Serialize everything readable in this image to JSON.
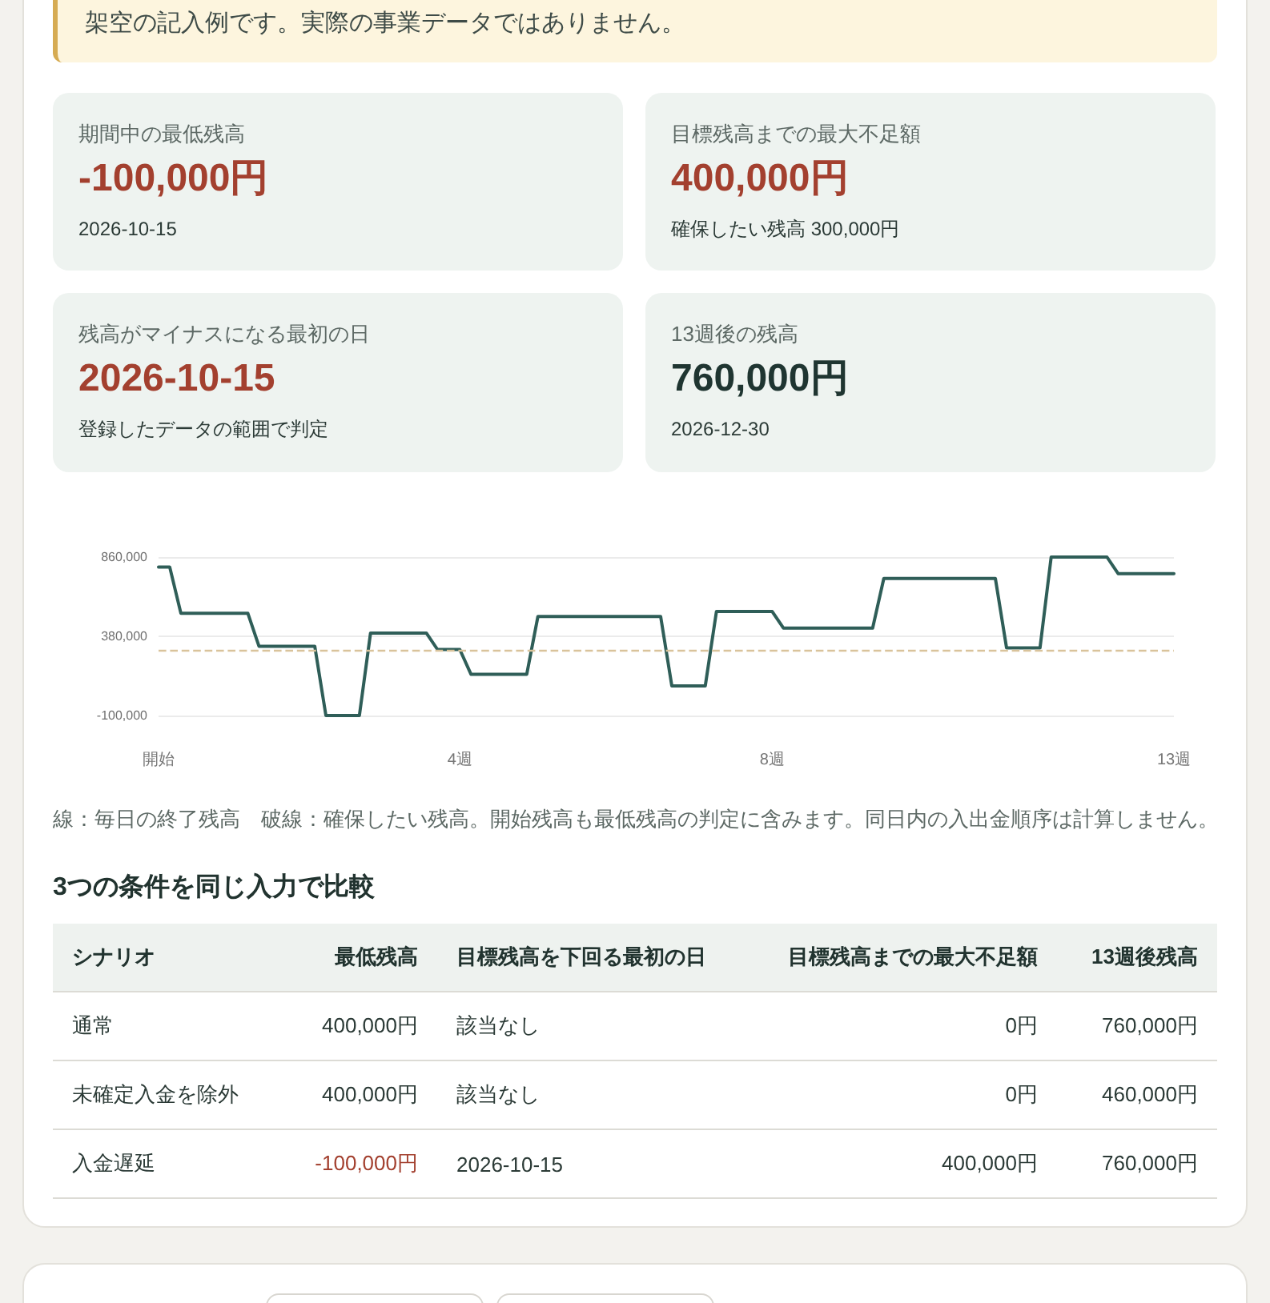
{
  "chart_data": [
    {
      "type": "other",
      "annotations": [
        "架空の記入例です。実際の事業データではありません。"
      ]
    },
    {
      "type": "other",
      "title": "期間中の最低残高",
      "subtitle": "-100,000円",
      "annotations": [
        "2026-10-15"
      ],
      "color": "#a3402f"
    },
    {
      "type": "other",
      "title": "目標残高までの最大不足額",
      "subtitle": "400,000円",
      "annotations": [
        "確保したい残高 300,000円"
      ],
      "color": "#a3402f"
    },
    {
      "type": "other",
      "title": "残高がマイナスになる最初の日",
      "subtitle": "2026-10-15",
      "annotations": [
        "登録したデータの範囲で判定"
      ],
      "color": "#a3402f"
    },
    {
      "type": "other",
      "title": "13週後の残高",
      "subtitle": "760,000円",
      "annotations": [
        "2026-12-30"
      ],
      "color": "#1f3531"
    },
    {
      "type": "line",
      "categories": [
        "開始",
        null,
        null,
        null,
        null,
        null,
        null,
        null,
        null,
        null,
        null,
        null,
        null,
        null,
        null,
        null,
        null,
        null,
        null,
        null,
        null,
        null,
        null,
        null,
        null,
        null,
        null,
        "4週",
        null,
        null,
        null,
        null,
        null,
        null,
        null,
        null,
        null,
        null,
        null,
        null,
        null,
        null,
        null,
        null,
        null,
        null,
        null,
        null,
        null,
        null,
        null,
        null,
        null,
        null,
        null,
        "8週",
        null,
        null,
        null,
        null,
        null,
        null,
        null,
        null,
        null,
        null,
        null,
        null,
        null,
        null,
        null,
        null,
        null,
        null,
        null,
        null,
        null,
        null,
        null,
        null,
        null,
        null,
        null,
        null,
        null,
        null,
        null,
        null,
        null,
        null,
        null,
        "13週"
      ],
      "values": [
        800000,
        800000,
        520000,
        520000,
        520000,
        520000,
        520000,
        520000,
        520000,
        320000,
        320000,
        320000,
        320000,
        320000,
        320000,
        -100000,
        -100000,
        -100000,
        -100000,
        400000,
        400000,
        400000,
        400000,
        400000,
        400000,
        300000,
        300000,
        300000,
        150000,
        150000,
        150000,
        150000,
        150000,
        150000,
        500000,
        500000,
        500000,
        500000,
        500000,
        500000,
        500000,
        500000,
        500000,
        500000,
        500000,
        500000,
        80000,
        80000,
        80000,
        80000,
        530000,
        530000,
        530000,
        530000,
        530000,
        530000,
        430000,
        430000,
        430000,
        430000,
        430000,
        430000,
        430000,
        430000,
        430000,
        730000,
        730000,
        730000,
        730000,
        730000,
        730000,
        730000,
        730000,
        730000,
        730000,
        730000,
        310000,
        310000,
        310000,
        310000,
        860000,
        860000,
        860000,
        860000,
        860000,
        860000,
        760000,
        760000,
        760000,
        760000,
        760000,
        760000
      ],
      "color": "#2f5e58",
      "ylim": [
        -100000,
        860000
      ],
      "yticks": [
        {
          "value": -100000,
          "label": "-100,000"
        },
        {
          "value": 380000,
          "label": "380,000"
        },
        {
          "value": 860000,
          "label": "860,000"
        }
      ],
      "grid": "y",
      "marker": "none",
      "line_style": "solid",
      "ref_lines": [
        {
          "axis": "y",
          "value": 300000,
          "color": "#d9c39b",
          "line_style": "dashed"
        }
      ],
      "annotations": [
        "線：毎日の終了残高　破線：確保したい残高。開始残高も最低残高の判定に含みます。同日内の入出金順序は計算しません。"
      ]
    },
    {
      "type": "other",
      "title": "3つの条件を同じ入力で比較",
      "xlabel": "シナリオ",
      "categories": [
        "通常",
        "未確定入金を除外",
        "入金遅延"
      ],
      "series": [
        {
          "name": "最低残高",
          "values": [
            null,
            null,
            null
          ],
          "value_labels": [
            "400,000円",
            "400,000円",
            "-100,000円"
          ],
          "colors": [
            "#2b3a36",
            "#2b3a36",
            "#a3402f"
          ]
        },
        {
          "name": "目標残高を下回る最初の日",
          "values": [
            null,
            null,
            null
          ],
          "value_labels": [
            "該当なし",
            "該当なし",
            "2026-10-15"
          ]
        },
        {
          "name": "目標残高までの最大不足額",
          "values": [
            null,
            null,
            null
          ],
          "value_labels": [
            "0円",
            "0円",
            "400,000円"
          ]
        },
        {
          "name": "13週後残高",
          "values": [
            null,
            null,
            null
          ],
          "value_labels": [
            "760,000円",
            "460,000円",
            "760,000円"
          ]
        }
      ]
    }
  ]
}
